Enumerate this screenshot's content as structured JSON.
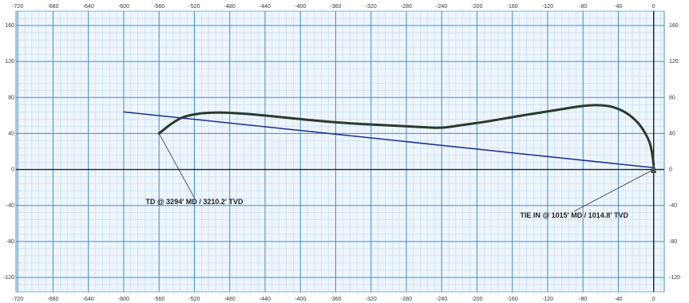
{
  "chart_data": {
    "type": "line",
    "title": "",
    "xlabel": "",
    "ylabel": "",
    "xlim": [
      -722,
      12
    ],
    "ylim": [
      -136,
      176
    ],
    "x_ticks": [
      -720,
      -680,
      -640,
      -600,
      -560,
      -520,
      -480,
      -440,
      -400,
      -360,
      -320,
      -280,
      -240,
      -200,
      -160,
      -120,
      -80,
      -40,
      0
    ],
    "y_ticks": [
      160,
      120,
      80,
      40,
      0,
      -40,
      -80,
      -120
    ],
    "grid": true,
    "series": [
      {
        "points": [
          [
            0,
            5
          ],
          [
            -2,
            25
          ],
          [
            -10,
            42
          ],
          [
            -20,
            55
          ],
          [
            -35,
            66
          ],
          [
            -55,
            72
          ],
          [
            -80,
            71
          ],
          [
            -110,
            66
          ],
          [
            -150,
            60
          ],
          [
            -190,
            53
          ],
          [
            -220,
            49
          ],
          [
            -240,
            46
          ],
          [
            -260,
            47
          ],
          [
            -300,
            49
          ],
          [
            -340,
            51
          ],
          [
            -380,
            54
          ],
          [
            -420,
            58
          ],
          [
            -460,
            62
          ],
          [
            -500,
            64
          ],
          [
            -530,
            60
          ],
          [
            -545,
            52
          ],
          [
            -560,
            40
          ]
        ],
        "color": "#2b3a2b"
      },
      {
        "points": [
          [
            -600,
            64
          ],
          [
            0,
            2
          ]
        ],
        "color": "#1a2f8c"
      }
    ],
    "annotations": [
      {
        "text": "TD @ 3294' MD / 3210.2' TVD",
        "point": [
          -560,
          40
        ],
        "label_at": [
          -520,
          -35
        ]
      },
      {
        "text": "TIE IN @ 1015' MD / 1014.8' TVD",
        "point": [
          0,
          0
        ],
        "label_at": [
          -90,
          -50
        ]
      }
    ],
    "colors": {
      "grid_major": "#3d8fd1",
      "grid_minor": "#b8d6ee",
      "background": "#eef5fb"
    }
  }
}
